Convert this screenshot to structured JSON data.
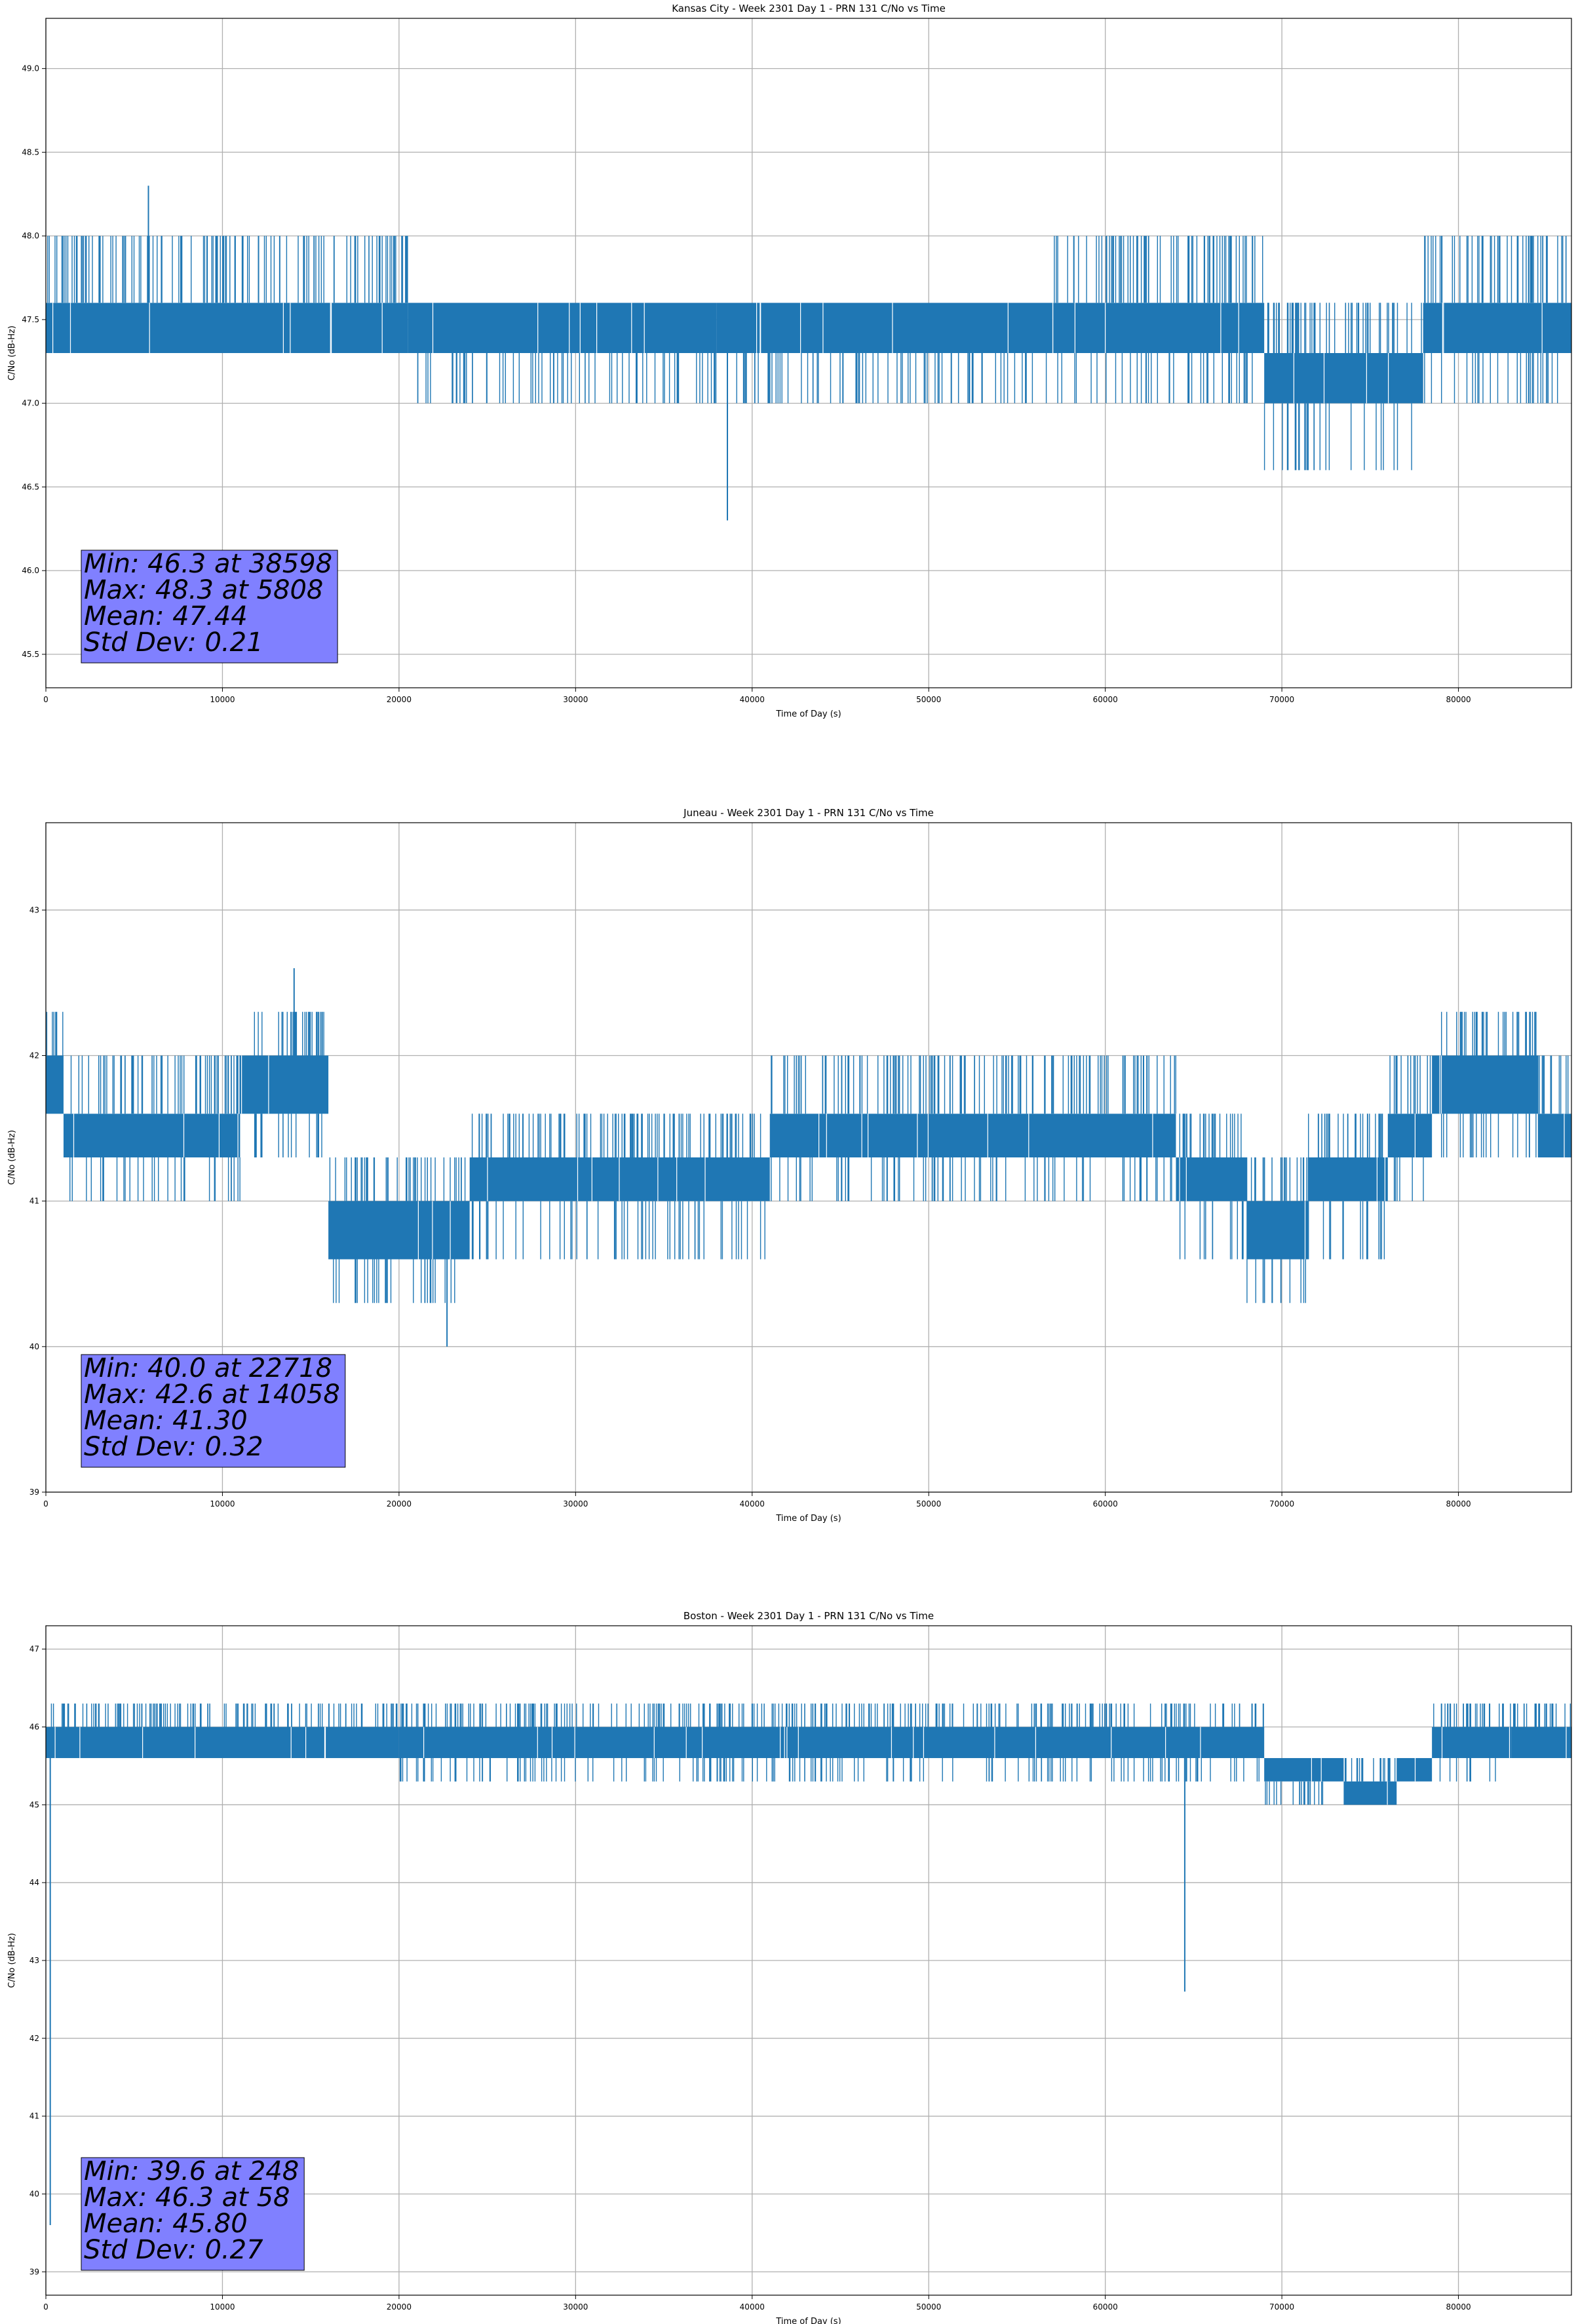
{
  "chart_data": [
    {
      "type": "line",
      "title": "Kansas City - Week 2301 Day 1 - PRN 131 C/No vs Time",
      "xlabel": "Time of Day (s)",
      "ylabel": "C/No (dB-Hz)",
      "xlim": [
        0,
        86400
      ],
      "ylim": [
        45.3,
        49.3
      ],
      "xticks": [
        0,
        10000,
        20000,
        30000,
        40000,
        50000,
        60000,
        70000,
        80000
      ],
      "yticks": [
        45.5,
        46.0,
        46.5,
        47.0,
        47.5,
        48.0,
        48.5,
        49.0
      ],
      "ytick_labels": [
        "45.5",
        "46.0",
        "46.5",
        "47.0",
        "47.5",
        "48.0",
        "48.5",
        "49.0"
      ],
      "grid": true,
      "color": "#1f77b4",
      "stats_box_color": "#8080ff",
      "stats": {
        "min_line": "Min: 46.3 at 38598",
        "max_line": "Max: 48.3 at 5808",
        "mean_line": "Mean: 47.44",
        "std_line": "Std Dev: 0.21"
      },
      "min": 46.3,
      "min_at": 38598,
      "max": 48.3,
      "max_at": 5808,
      "levels": [
        46.6,
        47.0,
        47.3,
        47.6,
        48.0
      ],
      "segments": [
        {
          "x0": 0,
          "x1": 20500,
          "low": 47.3,
          "high": 47.6,
          "up": 48.0,
          "down": 47.3
        },
        {
          "x0": 20500,
          "x1": 38000,
          "low": 47.3,
          "high": 47.6,
          "up": 47.6,
          "down": 47.0
        },
        {
          "x0": 38000,
          "x1": 57000,
          "low": 47.3,
          "high": 47.6,
          "up": 47.6,
          "down": 47.0
        },
        {
          "x0": 57000,
          "x1": 69000,
          "low": 47.3,
          "high": 47.6,
          "up": 48.0,
          "down": 47.0
        },
        {
          "x0": 69000,
          "x1": 78000,
          "low": 47.0,
          "high": 47.3,
          "up": 47.6,
          "down": 46.6
        },
        {
          "x0": 78000,
          "x1": 86400,
          "low": 47.3,
          "high": 47.6,
          "up": 48.0,
          "down": 47.0
        }
      ],
      "spikes": [
        {
          "x": 5808,
          "y": 48.3
        },
        {
          "x": 38598,
          "y": 46.3
        }
      ]
    },
    {
      "type": "line",
      "title": "Juneau - Week 2301 Day 1 - PRN 131 C/No vs Time",
      "xlabel": "Time of Day (s)",
      "ylabel": "C/No (dB-Hz)",
      "xlim": [
        0,
        86400
      ],
      "ylim": [
        39.0,
        43.6
      ],
      "xticks": [
        0,
        10000,
        20000,
        30000,
        40000,
        50000,
        60000,
        70000,
        80000
      ],
      "yticks": [
        39,
        40,
        41,
        42,
        43
      ],
      "ytick_labels": [
        "39",
        "40",
        "41",
        "42",
        "43"
      ],
      "grid": true,
      "color": "#1f77b4",
      "stats_box_color": "#8080ff",
      "stats": {
        "min_line": "Min: 40.0 at 22718",
        "max_line": "Max: 42.6 at 14058",
        "mean_line": "Mean: 41.30",
        "std_line": "Std Dev: 0.32"
      },
      "min": 40.0,
      "min_at": 22718,
      "max": 42.6,
      "max_at": 14058,
      "levels": [
        40.3,
        40.6,
        41.0,
        41.3,
        41.6,
        42.0,
        42.3
      ],
      "segments": [
        {
          "x0": 0,
          "x1": 1000,
          "low": 41.6,
          "high": 42.0,
          "up": 42.3,
          "down": 41.6
        },
        {
          "x0": 1000,
          "x1": 11000,
          "low": 41.3,
          "high": 41.6,
          "up": 42.0,
          "down": 41.0
        },
        {
          "x0": 11000,
          "x1": 16000,
          "low": 41.6,
          "high": 42.0,
          "up": 42.3,
          "down": 41.3
        },
        {
          "x0": 16000,
          "x1": 24000,
          "low": 40.6,
          "high": 41.0,
          "up": 41.3,
          "down": 40.3
        },
        {
          "x0": 24000,
          "x1": 41000,
          "low": 41.0,
          "high": 41.3,
          "up": 41.6,
          "down": 40.6
        },
        {
          "x0": 41000,
          "x1": 64000,
          "low": 41.3,
          "high": 41.6,
          "up": 42.0,
          "down": 41.0
        },
        {
          "x0": 64000,
          "x1": 68000,
          "low": 41.0,
          "high": 41.3,
          "up": 41.6,
          "down": 40.6
        },
        {
          "x0": 68000,
          "x1": 71500,
          "low": 40.6,
          "high": 41.0,
          "up": 41.3,
          "down": 40.3
        },
        {
          "x0": 71500,
          "x1": 76000,
          "low": 41.0,
          "high": 41.3,
          "up": 41.6,
          "down": 40.6
        },
        {
          "x0": 76000,
          "x1": 78500,
          "low": 41.3,
          "high": 41.6,
          "up": 42.0,
          "down": 41.0
        },
        {
          "x0": 78500,
          "x1": 84500,
          "low": 41.6,
          "high": 42.0,
          "up": 42.3,
          "down": 41.3
        },
        {
          "x0": 84500,
          "x1": 86400,
          "low": 41.3,
          "high": 41.6,
          "up": 42.0,
          "down": 41.3
        }
      ],
      "spikes": [
        {
          "x": 14058,
          "y": 42.6
        },
        {
          "x": 22718,
          "y": 40.0
        }
      ]
    },
    {
      "type": "line",
      "title": "Boston - Week 2301 Day 1 - PRN 131 C/No vs Time",
      "xlabel": "Time of Day (s)",
      "ylabel": "C/No (dB-Hz)",
      "xlim": [
        0,
        86400
      ],
      "ylim": [
        38.7,
        47.3
      ],
      "xticks": [
        0,
        10000,
        20000,
        30000,
        40000,
        50000,
        60000,
        70000,
        80000
      ],
      "yticks": [
        39,
        40,
        41,
        42,
        43,
        44,
        45,
        46,
        47
      ],
      "ytick_labels": [
        "39",
        "40",
        "41",
        "42",
        "43",
        "44",
        "45",
        "46",
        "47"
      ],
      "grid": true,
      "color": "#1f77b4",
      "stats_box_color": "#8080ff",
      "stats": {
        "min_line": "Min: 39.6 at 248",
        "max_line": "Max: 46.3 at 58",
        "mean_line": "Mean: 45.80",
        "std_line": "Std Dev: 0.27"
      },
      "min": 39.6,
      "min_at": 248,
      "max": 46.3,
      "max_at": 58,
      "levels": [
        45.0,
        45.3,
        45.6,
        46.0,
        46.3
      ],
      "segments": [
        {
          "x0": 0,
          "x1": 9000,
          "low": 45.6,
          "high": 46.0,
          "up": 46.3,
          "down": 45.6
        },
        {
          "x0": 9000,
          "x1": 20000,
          "low": 45.6,
          "high": 46.0,
          "up": 46.3,
          "down": 45.6
        },
        {
          "x0": 20000,
          "x1": 63000,
          "low": 45.6,
          "high": 46.0,
          "up": 46.3,
          "down": 45.3
        },
        {
          "x0": 63000,
          "x1": 69000,
          "low": 45.6,
          "high": 46.0,
          "up": 46.3,
          "down": 45.3
        },
        {
          "x0": 69000,
          "x1": 73500,
          "low": 45.3,
          "high": 45.6,
          "up": 45.6,
          "down": 45.0
        },
        {
          "x0": 73500,
          "x1": 76500,
          "low": 45.0,
          "high": 45.3,
          "up": 45.6,
          "down": 45.0
        },
        {
          "x0": 76500,
          "x1": 78500,
          "low": 45.3,
          "high": 45.6,
          "up": 45.6,
          "down": 45.3
        },
        {
          "x0": 78500,
          "x1": 83000,
          "low": 45.6,
          "high": 46.0,
          "up": 46.3,
          "down": 45.3
        },
        {
          "x0": 83000,
          "x1": 86400,
          "low": 45.6,
          "high": 46.0,
          "up": 46.3,
          "down": 45.6
        }
      ],
      "spikes": [
        {
          "x": 248,
          "y": 39.6
        },
        {
          "x": 64500,
          "y": 42.6
        }
      ]
    }
  ]
}
